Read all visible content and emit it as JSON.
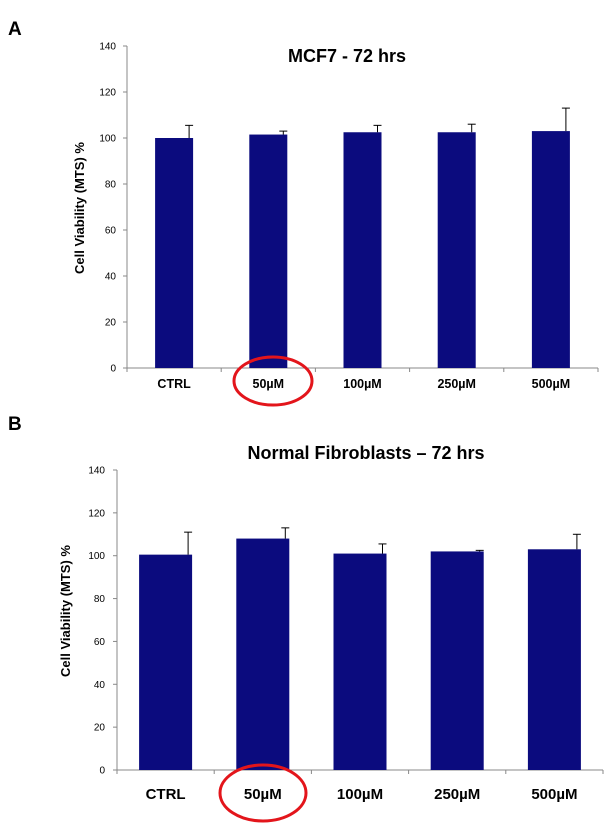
{
  "chart_data": [
    {
      "type": "bar",
      "panel": "A",
      "title": "MCF7 - 72 hrs",
      "ylabel": "Cell Viability (MTS) %",
      "xlabel": "",
      "categories": [
        "CTRL",
        "50µM",
        "100µM",
        "250µM",
        "500µM"
      ],
      "values": [
        100,
        101.5,
        102.5,
        102.5,
        103
      ],
      "errors": [
        5.5,
        1.5,
        3,
        3.5,
        10
      ],
      "ylim": [
        0,
        140
      ],
      "yticks": [
        0,
        20,
        40,
        60,
        80,
        100,
        120,
        140
      ],
      "highlight_category": "50µM",
      "bar_color": "#0b0b7e",
      "highlight_color": "#e3151b",
      "grid": false,
      "legend": "none"
    },
    {
      "type": "bar",
      "panel": "B",
      "title": "Normal Fibroblasts – 72 hrs",
      "ylabel": "Cell Viability (MTS) %",
      "xlabel": "",
      "categories": [
        "CTRL",
        "50µM",
        "100µM",
        "250µM",
        "500µM"
      ],
      "values": [
        100.5,
        108,
        101,
        102,
        103
      ],
      "errors": [
        10.5,
        5,
        4.5,
        0.5,
        7
      ],
      "ylim": [
        0,
        140
      ],
      "yticks": [
        0,
        20,
        40,
        60,
        80,
        100,
        120,
        140
      ],
      "highlight_category": "50µM",
      "bar_color": "#0b0b7e",
      "highlight_color": "#e3151b",
      "grid": false,
      "legend": "none"
    }
  ]
}
